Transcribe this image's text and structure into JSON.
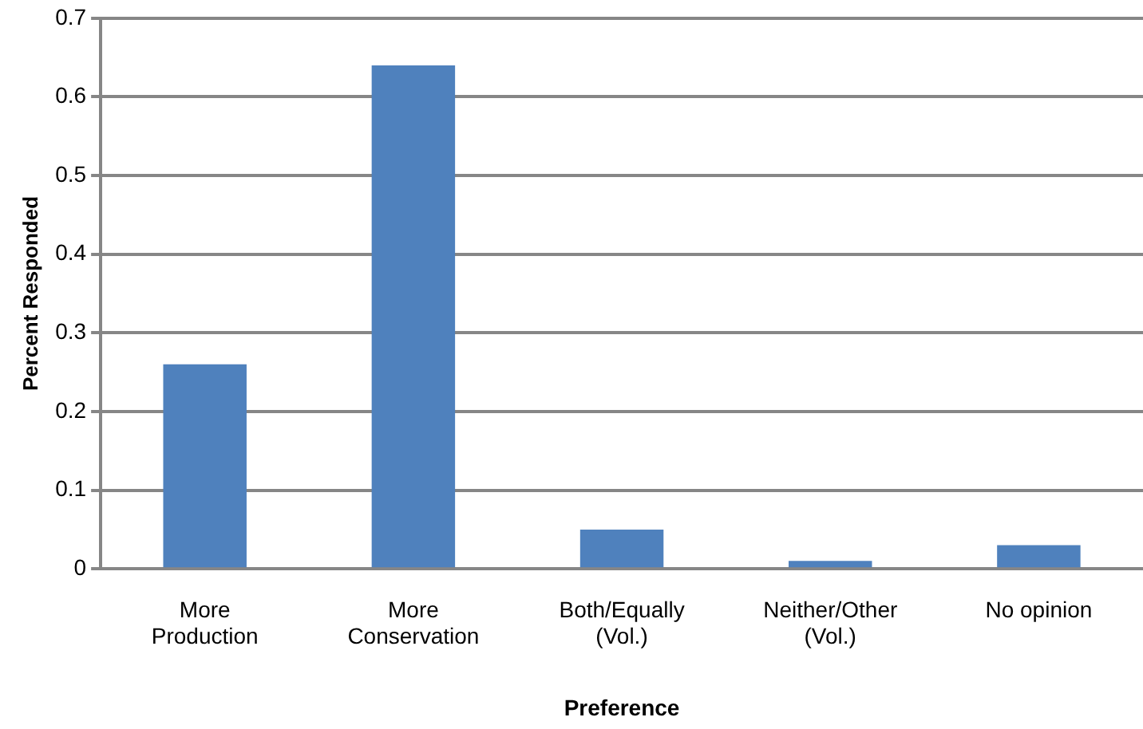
{
  "chart_data": {
    "type": "bar",
    "xlabel": "Preference",
    "ylabel": "Percent Responded",
    "categories": [
      "More\nProduction",
      "More\nConservation",
      "Both/Equally\n(Vol.)",
      "Neither/Other\n(Vol.)",
      "No opinion"
    ],
    "values": [
      0.26,
      0.64,
      0.05,
      0.01,
      0.03
    ],
    "color": "#4f81bd",
    "ylim": [
      0,
      0.7
    ],
    "yticks": [
      0,
      0.1,
      0.2,
      0.3,
      0.4,
      0.5,
      0.6,
      0.7
    ],
    "grid": "y",
    "legend": false
  }
}
